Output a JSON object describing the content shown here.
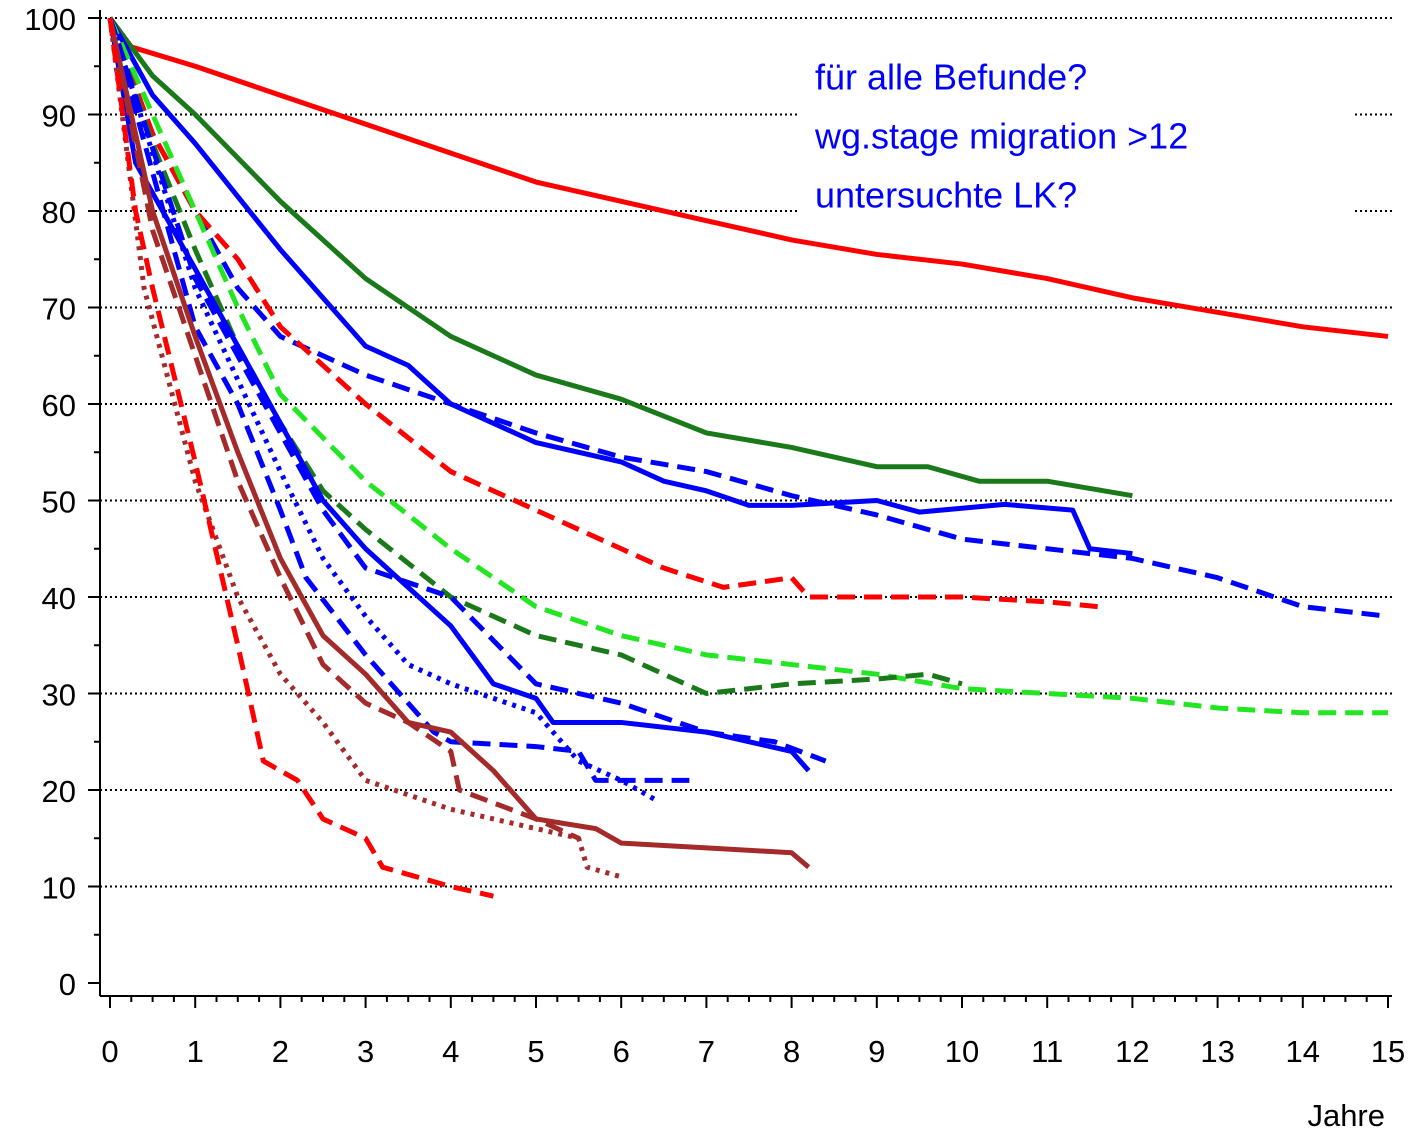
{
  "chart_data": {
    "type": "line",
    "xlabel": "Jahre",
    "annotations": [
      "für alle Befunde?",
      "wg.stage migration >12",
      "untersuchte LK?"
    ],
    "xlim": [
      0,
      15
    ],
    "xticks": [
      0,
      1,
      2,
      3,
      4,
      5,
      6,
      7,
      8,
      9,
      10,
      11,
      12,
      13,
      14,
      15
    ],
    "ylim": [
      0,
      100
    ],
    "yticks": [
      0,
      10,
      20,
      30,
      40,
      50,
      60,
      70,
      80,
      90,
      100
    ],
    "grid": true,
    "series": [
      {
        "color": "#ff0000",
        "style": "solid",
        "x": [
          0,
          0.25,
          1,
          2,
          3,
          4,
          5,
          6,
          7,
          8,
          9,
          10,
          11,
          12,
          13,
          14,
          15
        ],
        "values": [
          100,
          97,
          95,
          92,
          89,
          86,
          83,
          81,
          79,
          77,
          75.5,
          74.5,
          73,
          71,
          69.5,
          68,
          67
        ]
      },
      {
        "color": "#1a7a1a",
        "style": "solid",
        "x": [
          0,
          0.5,
          1,
          2,
          3,
          4,
          5,
          6,
          7,
          8,
          9,
          9.6,
          10.2,
          11,
          12
        ],
        "values": [
          100,
          94,
          90,
          81,
          73,
          67,
          63,
          60.5,
          57,
          55.5,
          53.5,
          53.5,
          52,
          52,
          50.5
        ]
      },
      {
        "color": "#0000ff",
        "style": "solid",
        "x": [
          0,
          0.5,
          1,
          2,
          2.5,
          3,
          3.5,
          4,
          5,
          6,
          6.5,
          7,
          7.5,
          8,
          9,
          9.5,
          10.5,
          11.3,
          11.5,
          12
        ],
        "values": [
          100,
          92,
          87,
          76,
          71,
          66,
          64,
          60,
          56,
          54,
          52,
          51,
          49.5,
          49.5,
          50,
          48.8,
          49.6,
          49,
          45,
          44.5
        ]
      },
      {
        "color": "#0000ff",
        "style": "dashed",
        "x": [
          0,
          0.5,
          1,
          1.5,
          2,
          3,
          4,
          5,
          6,
          7,
          8,
          9,
          10,
          11,
          12,
          13,
          14,
          15
        ],
        "values": [
          100,
          88,
          80,
          72,
          67,
          63,
          60,
          57,
          54.5,
          53,
          50.5,
          48.5,
          46,
          45,
          44,
          42,
          39,
          38
        ]
      },
      {
        "color": "#ff0000",
        "style": "dashed",
        "x": [
          0,
          0.5,
          1,
          1.5,
          2,
          3,
          4,
          5,
          6,
          6.5,
          7.2,
          8,
          8.2,
          9,
          10,
          11,
          11.6
        ],
        "values": [
          100,
          88,
          80,
          75,
          68,
          60,
          53,
          49,
          45,
          43,
          41,
          42,
          40,
          40,
          40,
          39.5,
          39
        ]
      },
      {
        "color": "#22e622",
        "style": "dashed",
        "x": [
          0,
          0.5,
          1,
          1.5,
          2,
          3,
          4,
          5,
          6,
          7,
          8,
          9,
          10,
          11,
          12,
          13,
          14,
          15
        ],
        "values": [
          100,
          90,
          80,
          70,
          61,
          52,
          45,
          39,
          36,
          34,
          33,
          32,
          30.5,
          30,
          29.5,
          28.5,
          28,
          28
        ]
      },
      {
        "color": "#1a7a1a",
        "style": "dashed",
        "x": [
          0,
          0.5,
          1,
          1.5,
          2,
          2.5,
          3,
          4,
          5,
          6,
          6.5,
          7,
          8,
          9,
          9.6,
          10
        ],
        "values": [
          100,
          87,
          76,
          66,
          58,
          51,
          47,
          40,
          36,
          34,
          32,
          30,
          31,
          31.5,
          32,
          31
        ]
      },
      {
        "color": "#0000ff",
        "style": "solid",
        "x": [
          0,
          0.3,
          1,
          2,
          2.5,
          3,
          4,
          4.5,
          5,
          5.2,
          6,
          7,
          8,
          8.2
        ],
        "values": [
          100,
          85,
          74,
          58,
          50,
          45,
          37,
          31,
          29.5,
          27,
          27,
          26,
          24,
          22
        ]
      },
      {
        "color": "#0000ff",
        "style": "dashed",
        "x": [
          0,
          1,
          2,
          2.5,
          3,
          4,
          5,
          6,
          7,
          7.8,
          8.4
        ],
        "values": [
          100,
          73,
          57,
          49,
          43,
          40,
          31,
          29,
          26,
          25,
          23
        ]
      },
      {
        "color": "#0000ff",
        "style": "dotted",
        "x": [
          0,
          1,
          2,
          2.5,
          3,
          3.5,
          4,
          5,
          5.5,
          6,
          6.4
        ],
        "values": [
          100,
          72,
          53,
          44,
          38,
          33,
          31,
          28,
          23,
          21,
          19
        ]
      },
      {
        "color": "#0000ff",
        "style": "dashed",
        "x": [
          0,
          1,
          1.5,
          2,
          2.3,
          3,
          3.8,
          4,
          5,
          5.5,
          5.7,
          6,
          6.8
        ],
        "values": [
          100,
          68,
          60,
          49,
          42,
          34,
          26,
          25,
          24.5,
          24,
          21,
          21,
          21
        ]
      },
      {
        "color": "#a52a2a",
        "style": "solid",
        "x": [
          0,
          0.5,
          1,
          1.5,
          2,
          2.5,
          3,
          3.5,
          4,
          4.5,
          5,
          5.7,
          6,
          7,
          8,
          8.2
        ],
        "values": [
          100,
          80,
          67,
          55,
          44,
          36,
          32,
          27,
          26,
          22,
          17,
          16,
          14.5,
          14,
          13.5,
          12
        ]
      },
      {
        "color": "#a52a2a",
        "style": "dashed",
        "x": [
          0,
          0.5,
          1,
          1.5,
          2,
          2.5,
          3,
          3.5,
          4,
          4.1,
          5,
          5.5
        ],
        "values": [
          100,
          78,
          65,
          52,
          42,
          33,
          29,
          27,
          24,
          20,
          17,
          15
        ]
      },
      {
        "color": "#a52a2a",
        "style": "dotted",
        "x": [
          0,
          0.4,
          1,
          1.5,
          2,
          2.5,
          3,
          4,
          5,
          5.5,
          5.6,
          6
        ],
        "values": [
          100,
          72,
          52,
          40,
          32,
          27,
          21,
          18,
          16,
          15,
          12,
          11
        ]
      },
      {
        "color": "#ff0000",
        "style": "dashed",
        "x": [
          0,
          0.3,
          0.5,
          1,
          1.5,
          1.8,
          2.2,
          2.5,
          3,
          3.2,
          4,
          4.5
        ],
        "values": [
          100,
          80,
          72,
          54,
          35,
          23,
          21,
          17,
          15,
          12,
          10,
          9
        ]
      }
    ]
  }
}
